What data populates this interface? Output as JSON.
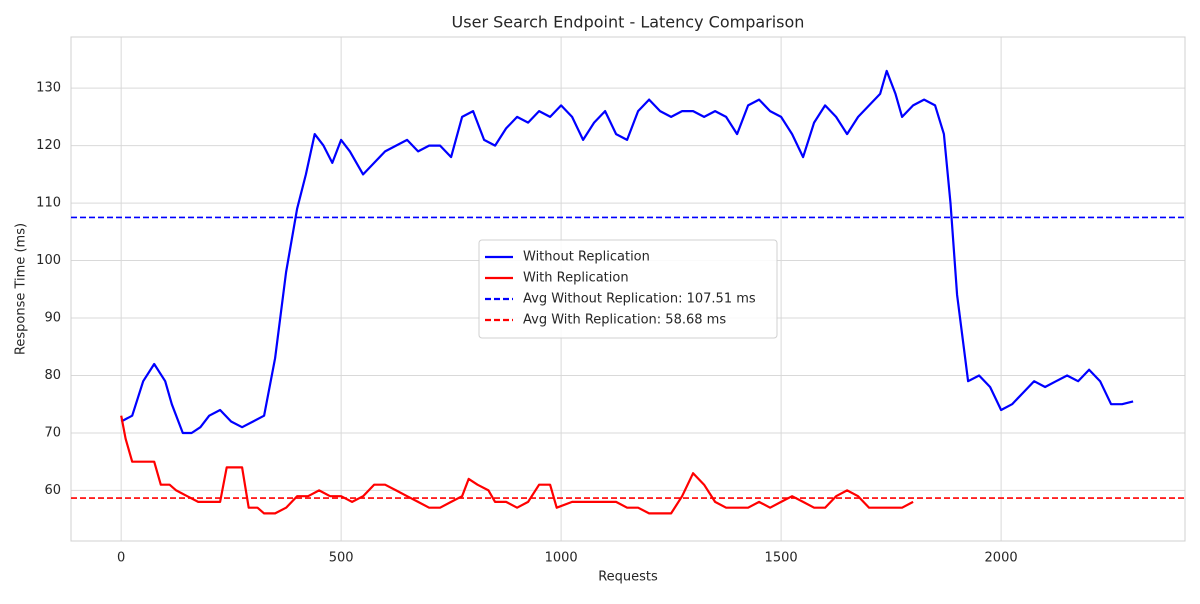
{
  "chart_data": {
    "type": "line",
    "title": "User Search Endpoint - Latency Comparison",
    "x_label": "Requests",
    "y_label": "Response Time (ms)",
    "xlim": [
      -114,
      2418
    ],
    "ylim": [
      51.2,
      138.9
    ],
    "xticks": [
      0,
      500,
      1000,
      1500,
      2000
    ],
    "yticks": [
      60,
      70,
      80,
      90,
      100,
      110,
      120,
      130
    ],
    "grid": true,
    "legend": "center",
    "series": [
      {
        "name": "Without Replication",
        "color": "#0000ff",
        "x": [
          0,
          25,
          50,
          75,
          100,
          115,
          140,
          160,
          180,
          200,
          225,
          250,
          275,
          300,
          325,
          350,
          375,
          400,
          420,
          440,
          460,
          480,
          500,
          520,
          550,
          575,
          600,
          625,
          650,
          675,
          700,
          725,
          750,
          775,
          800,
          825,
          850,
          875,
          900,
          925,
          950,
          975,
          1000,
          1025,
          1050,
          1075,
          1100,
          1125,
          1150,
          1175,
          1200,
          1225,
          1250,
          1275,
          1300,
          1325,
          1350,
          1375,
          1400,
          1425,
          1450,
          1475,
          1500,
          1525,
          1550,
          1575,
          1600,
          1625,
          1650,
          1675,
          1700,
          1725,
          1740,
          1760,
          1775,
          1800,
          1825,
          1850,
          1870,
          1885,
          1900,
          1925,
          1950,
          1975,
          2000,
          2025,
          2050,
          2075,
          2100,
          2125,
          2150,
          2175,
          2200,
          2225,
          2250,
          2275,
          2300
        ],
        "values": [
          72,
          73,
          79,
          82,
          79,
          75,
          70,
          70,
          71,
          73,
          74,
          72,
          71,
          72,
          73,
          83,
          98,
          109,
          115,
          122,
          120,
          117,
          121,
          119,
          115,
          117,
          119,
          120,
          121,
          119,
          120,
          120,
          118,
          125,
          126,
          121,
          120,
          123,
          125,
          124,
          126,
          125,
          127,
          125,
          121,
          124,
          126,
          122,
          121,
          126,
          128,
          126,
          125,
          126,
          126,
          125,
          126,
          125,
          122,
          127,
          128,
          126,
          125,
          122,
          118,
          124,
          127,
          125,
          122,
          125,
          127,
          129,
          133,
          129,
          125,
          127,
          128,
          127,
          122,
          110,
          94,
          79,
          80,
          78,
          74,
          75,
          77,
          79,
          78,
          79,
          80,
          79,
          81,
          79,
          75,
          75,
          75.5
        ]
      },
      {
        "name": "With Replication",
        "color": "#ff0000",
        "x": [
          0,
          10,
          25,
          50,
          75,
          90,
          110,
          125,
          150,
          175,
          200,
          225,
          240,
          260,
          275,
          290,
          310,
          325,
          350,
          375,
          400,
          425,
          450,
          475,
          500,
          525,
          550,
          575,
          600,
          625,
          650,
          675,
          700,
          725,
          750,
          775,
          790,
          810,
          835,
          850,
          875,
          900,
          925,
          950,
          975,
          990,
          1025,
          1050,
          1075,
          1100,
          1125,
          1150,
          1175,
          1200,
          1225,
          1250,
          1275,
          1300,
          1325,
          1350,
          1375,
          1400,
          1425,
          1450,
          1475,
          1500,
          1525,
          1550,
          1575,
          1600,
          1625,
          1650,
          1675,
          1700,
          1725,
          1750,
          1775,
          1800
        ],
        "values": [
          73,
          69,
          65,
          65,
          65,
          61,
          61,
          60,
          59,
          58,
          58,
          58,
          64,
          64,
          64,
          57,
          57,
          56,
          56,
          57,
          59,
          59,
          60,
          59,
          59,
          58,
          59,
          61,
          61,
          60,
          59,
          58,
          57,
          57,
          58,
          59,
          62,
          61,
          60,
          58,
          58,
          57,
          58,
          61,
          61,
          57,
          58,
          58,
          58,
          58,
          58,
          57,
          57,
          56,
          56,
          56,
          59,
          63,
          61,
          58,
          57,
          57,
          57,
          58,
          57,
          58,
          59,
          58,
          57,
          57,
          59,
          60,
          59,
          57,
          57,
          57,
          57,
          58
        ]
      }
    ],
    "hlines": [
      {
        "name": "Avg Without Replication: 107.51 ms",
        "color": "#0000ff",
        "value": 107.51
      },
      {
        "name": "Avg With Replication: 58.68 ms",
        "color": "#ff0000",
        "value": 58.68
      }
    ]
  }
}
